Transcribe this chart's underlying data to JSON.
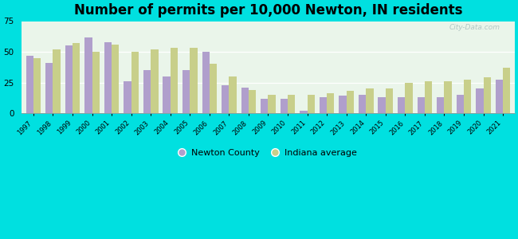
{
  "title": "Number of permits per 10,000 Newton, IN residents",
  "years": [
    1997,
    1998,
    1999,
    2000,
    2001,
    2002,
    2003,
    2004,
    2005,
    2006,
    2007,
    2008,
    2009,
    2010,
    2011,
    2012,
    2013,
    2014,
    2015,
    2016,
    2017,
    2018,
    2019,
    2020,
    2021
  ],
  "newton": [
    47,
    41,
    55,
    62,
    58,
    26,
    35,
    30,
    35,
    50,
    23,
    21,
    12,
    12,
    2,
    13,
    14,
    15,
    13,
    13,
    13,
    13,
    15,
    20,
    27
  ],
  "indiana": [
    45,
    52,
    57,
    50,
    56,
    50,
    52,
    53,
    53,
    40,
    30,
    19,
    15,
    15,
    15,
    16,
    18,
    20,
    20,
    25,
    26,
    26,
    27,
    29,
    37
  ],
  "newton_color": "#b09fcc",
  "indiana_color": "#c8cf8a",
  "fig_bg_color": "#00e0e0",
  "plot_bg_color": "#eaf5ea",
  "ylim": [
    0,
    75
  ],
  "yticks": [
    0,
    25,
    50,
    75
  ],
  "legend_newton": "Newton County",
  "legend_indiana": "Indiana average",
  "title_fontsize": 12,
  "watermark": "City-Data.com"
}
